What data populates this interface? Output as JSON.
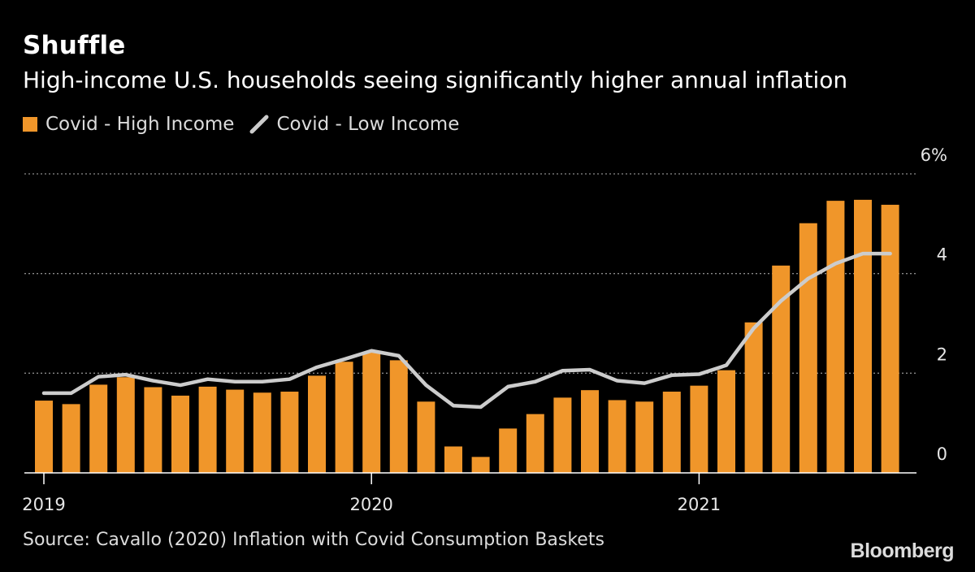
{
  "header": {
    "title": "Shuffle",
    "subtitle": "High-income U.S. households seeing significantly higher annual inflation"
  },
  "legend": {
    "high_label": "Covid - High Income",
    "low_label": "Covid - Low Income"
  },
  "footer": {
    "source": "Source: Cavallo (2020) Inflation with Covid Consumption Baskets",
    "brand": "Bloomberg"
  },
  "colors": {
    "background": "#000000",
    "bar": "#f0962a",
    "line": "#cccccc",
    "grid": "#8a8a8a",
    "axis": "#ffffff"
  },
  "chart_data": {
    "type": "bar",
    "x_tick_labels": [
      "2019",
      "2020",
      "2021"
    ],
    "y_tick_labels": [
      "6%",
      "4",
      "2",
      "0"
    ],
    "y_ticks": [
      6,
      4,
      2,
      0
    ],
    "ylim": [
      0,
      6
    ],
    "grid": true,
    "legend_position": "top-left",
    "categories": [
      "2019-01",
      "2019-02",
      "2019-03",
      "2019-04",
      "2019-05",
      "2019-06",
      "2019-07",
      "2019-08",
      "2019-09",
      "2019-10",
      "2019-11",
      "2019-12",
      "2020-01",
      "2020-02",
      "2020-03",
      "2020-04",
      "2020-05",
      "2020-06",
      "2020-07",
      "2020-08",
      "2020-09",
      "2020-10",
      "2020-11",
      "2020-12",
      "2021-01",
      "2021-02",
      "2021-03",
      "2021-04",
      "2021-05",
      "2021-06",
      "2021-07",
      "2021-08"
    ],
    "series": [
      {
        "name": "Covid - High Income",
        "type": "bar",
        "values": [
          1.45,
          1.38,
          1.77,
          1.92,
          1.72,
          1.55,
          1.73,
          1.67,
          1.61,
          1.63,
          1.95,
          2.23,
          2.42,
          2.26,
          1.43,
          0.53,
          0.32,
          0.89,
          1.18,
          1.51,
          1.66,
          1.46,
          1.43,
          1.63,
          1.75,
          2.06,
          3.02,
          4.16,
          5.01,
          5.46,
          5.48,
          5.38
        ]
      },
      {
        "name": "Covid - Low Income",
        "type": "line",
        "values": [
          1.6,
          1.6,
          1.93,
          1.97,
          1.85,
          1.76,
          1.88,
          1.83,
          1.83,
          1.88,
          2.12,
          2.28,
          2.45,
          2.35,
          1.76,
          1.35,
          1.32,
          1.73,
          1.83,
          2.05,
          2.07,
          1.85,
          1.8,
          1.96,
          1.98,
          2.16,
          2.9,
          3.45,
          3.9,
          4.2,
          4.4,
          4.4
        ]
      }
    ]
  }
}
